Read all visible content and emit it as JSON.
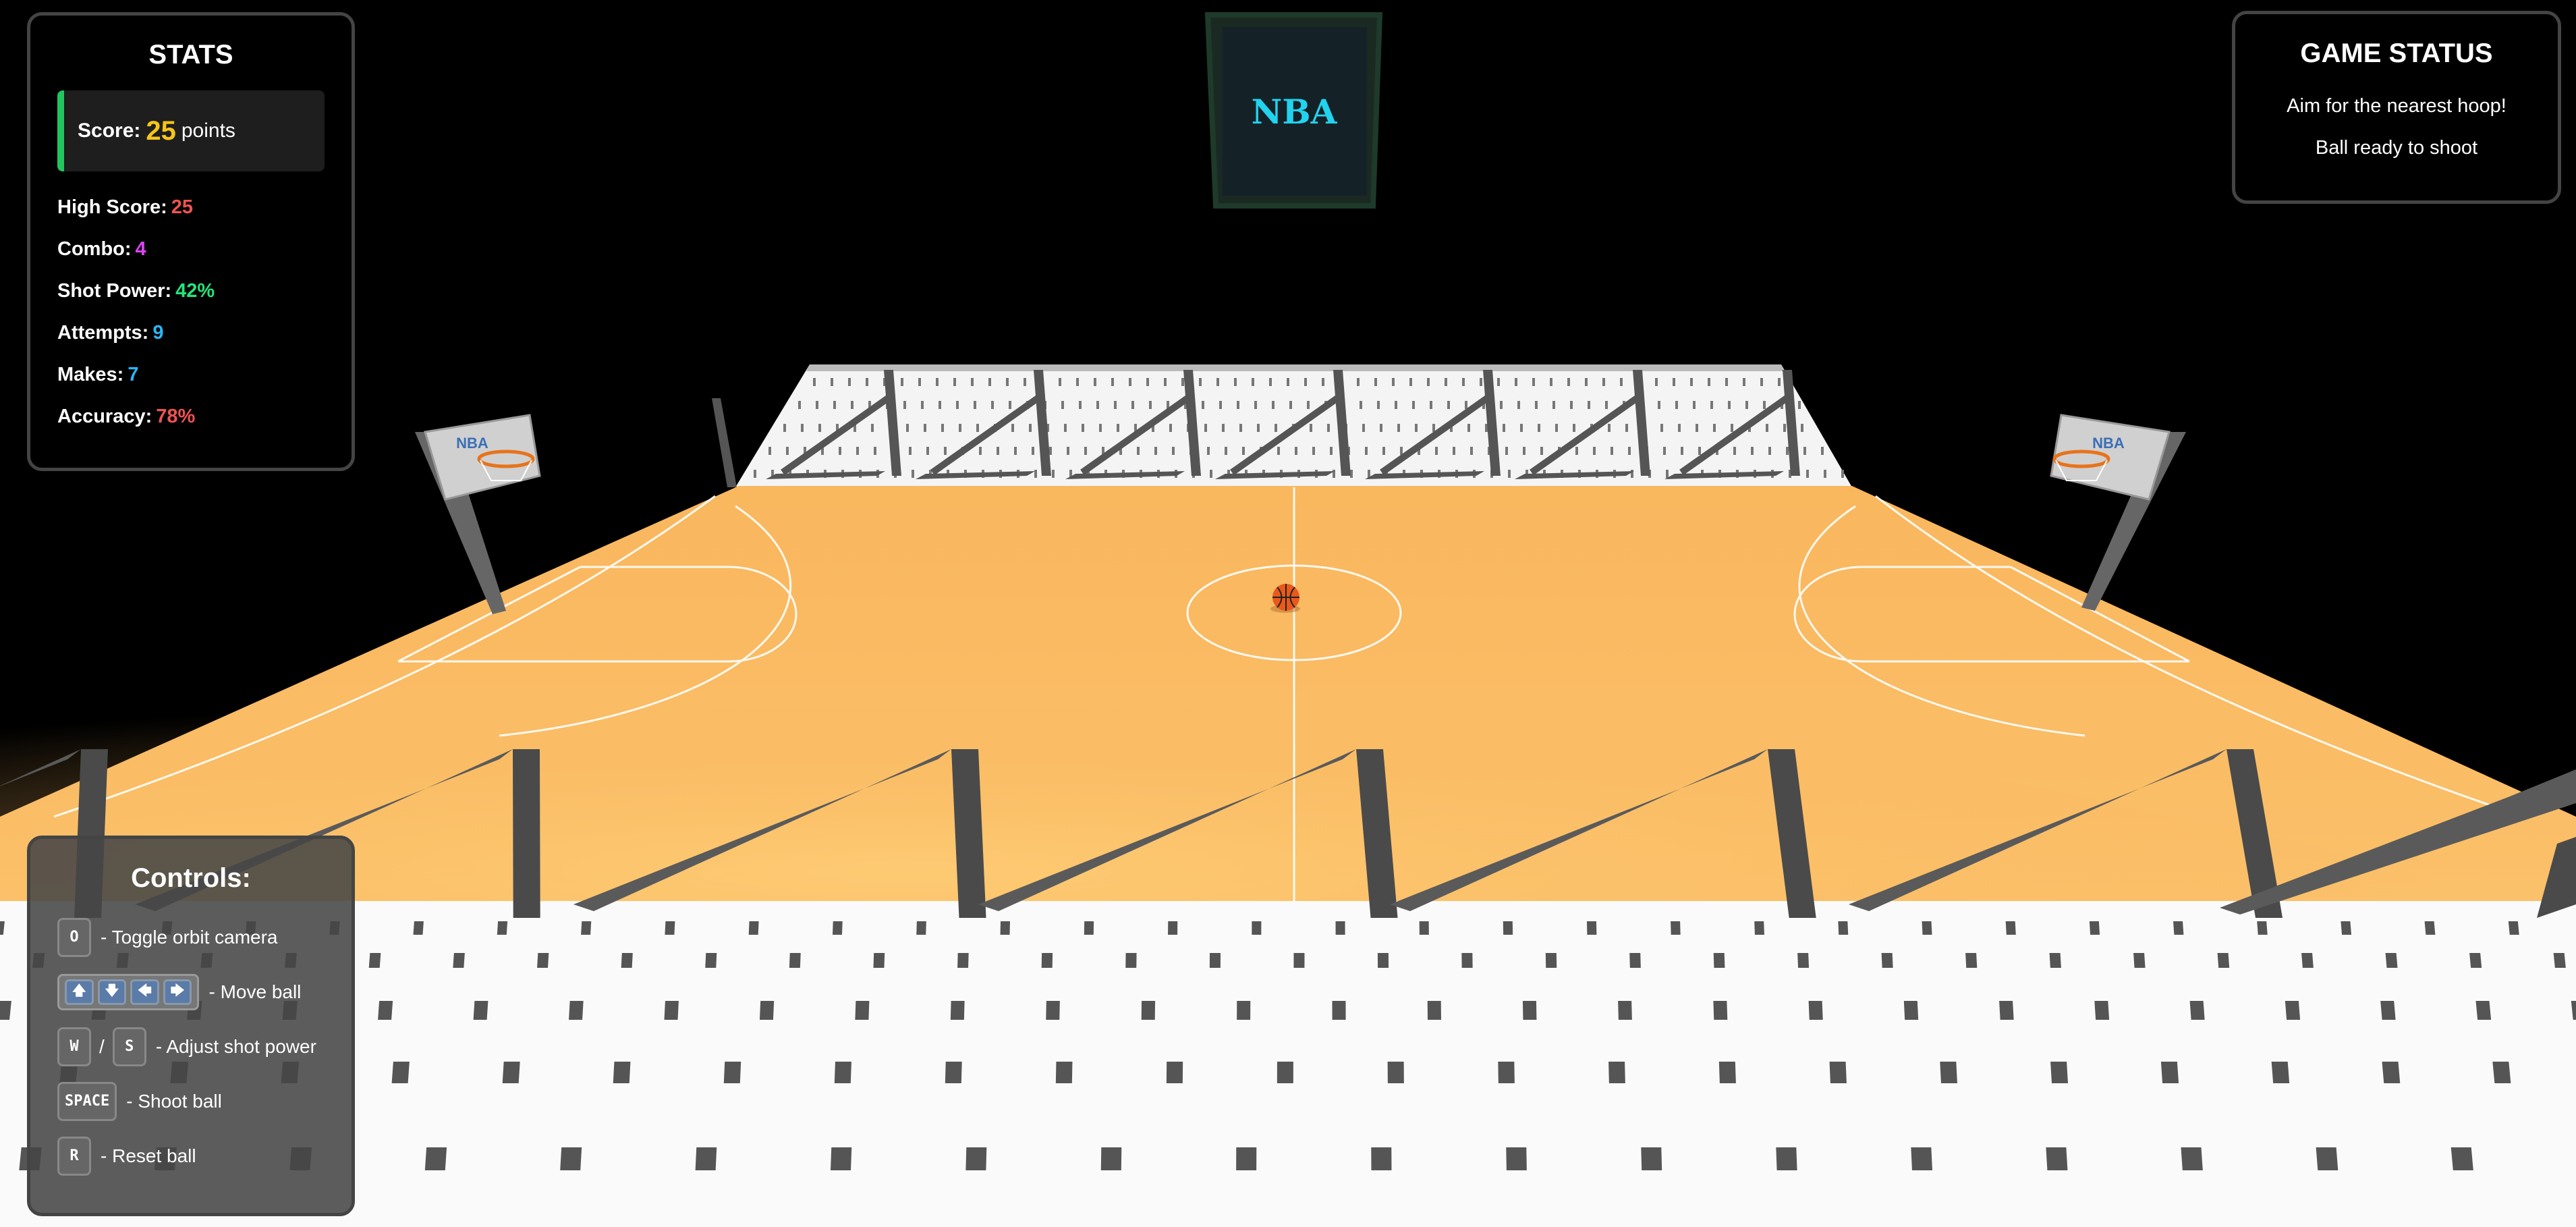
{
  "stats": {
    "title": "STATS",
    "score": {
      "label": "Score:",
      "value": "25",
      "unit": "points"
    },
    "rows": [
      {
        "label": "High Score:",
        "value": "25",
        "color": "#ef5350"
      },
      {
        "label": "Combo:",
        "value": "4",
        "color": "#d946ef"
      },
      {
        "label": "Shot Power:",
        "value": "42%",
        "color": "#22e57a"
      },
      {
        "label": "Attempts:",
        "value": "9",
        "color": "#29b6f6"
      },
      {
        "label": "Makes:",
        "value": "7",
        "color": "#29b6f6"
      },
      {
        "label": "Accuracy:",
        "value": "78%",
        "color": "#ef5350"
      }
    ]
  },
  "game_status": {
    "title": "GAME STATUS",
    "lines": [
      "Aim for the nearest hoop!",
      "Ball ready to shoot"
    ]
  },
  "controls": {
    "title": "Controls:",
    "orbit": {
      "key": "O",
      "desc": "- Toggle orbit camera"
    },
    "move": {
      "keys": [
        "🡅",
        "🡇",
        "🡄",
        "🡆"
      ],
      "desc": "- Move ball"
    },
    "power": {
      "key1": "W",
      "sep": "/",
      "key2": "S",
      "desc": "- Adjust shot power"
    },
    "shoot": {
      "key": "SPACE",
      "desc": "- Shoot ball"
    },
    "reset": {
      "key": "R",
      "desc": "- Reset ball"
    }
  },
  "scoreboard": {
    "label": "NBA",
    "color": "#22d3ee"
  },
  "backboard_labels": {
    "left": "NBA",
    "right": "NBA"
  },
  "colors": {
    "court": "#f8b458",
    "ball": "#e8591a",
    "stands": "#ffffff",
    "rails": "#555555"
  }
}
